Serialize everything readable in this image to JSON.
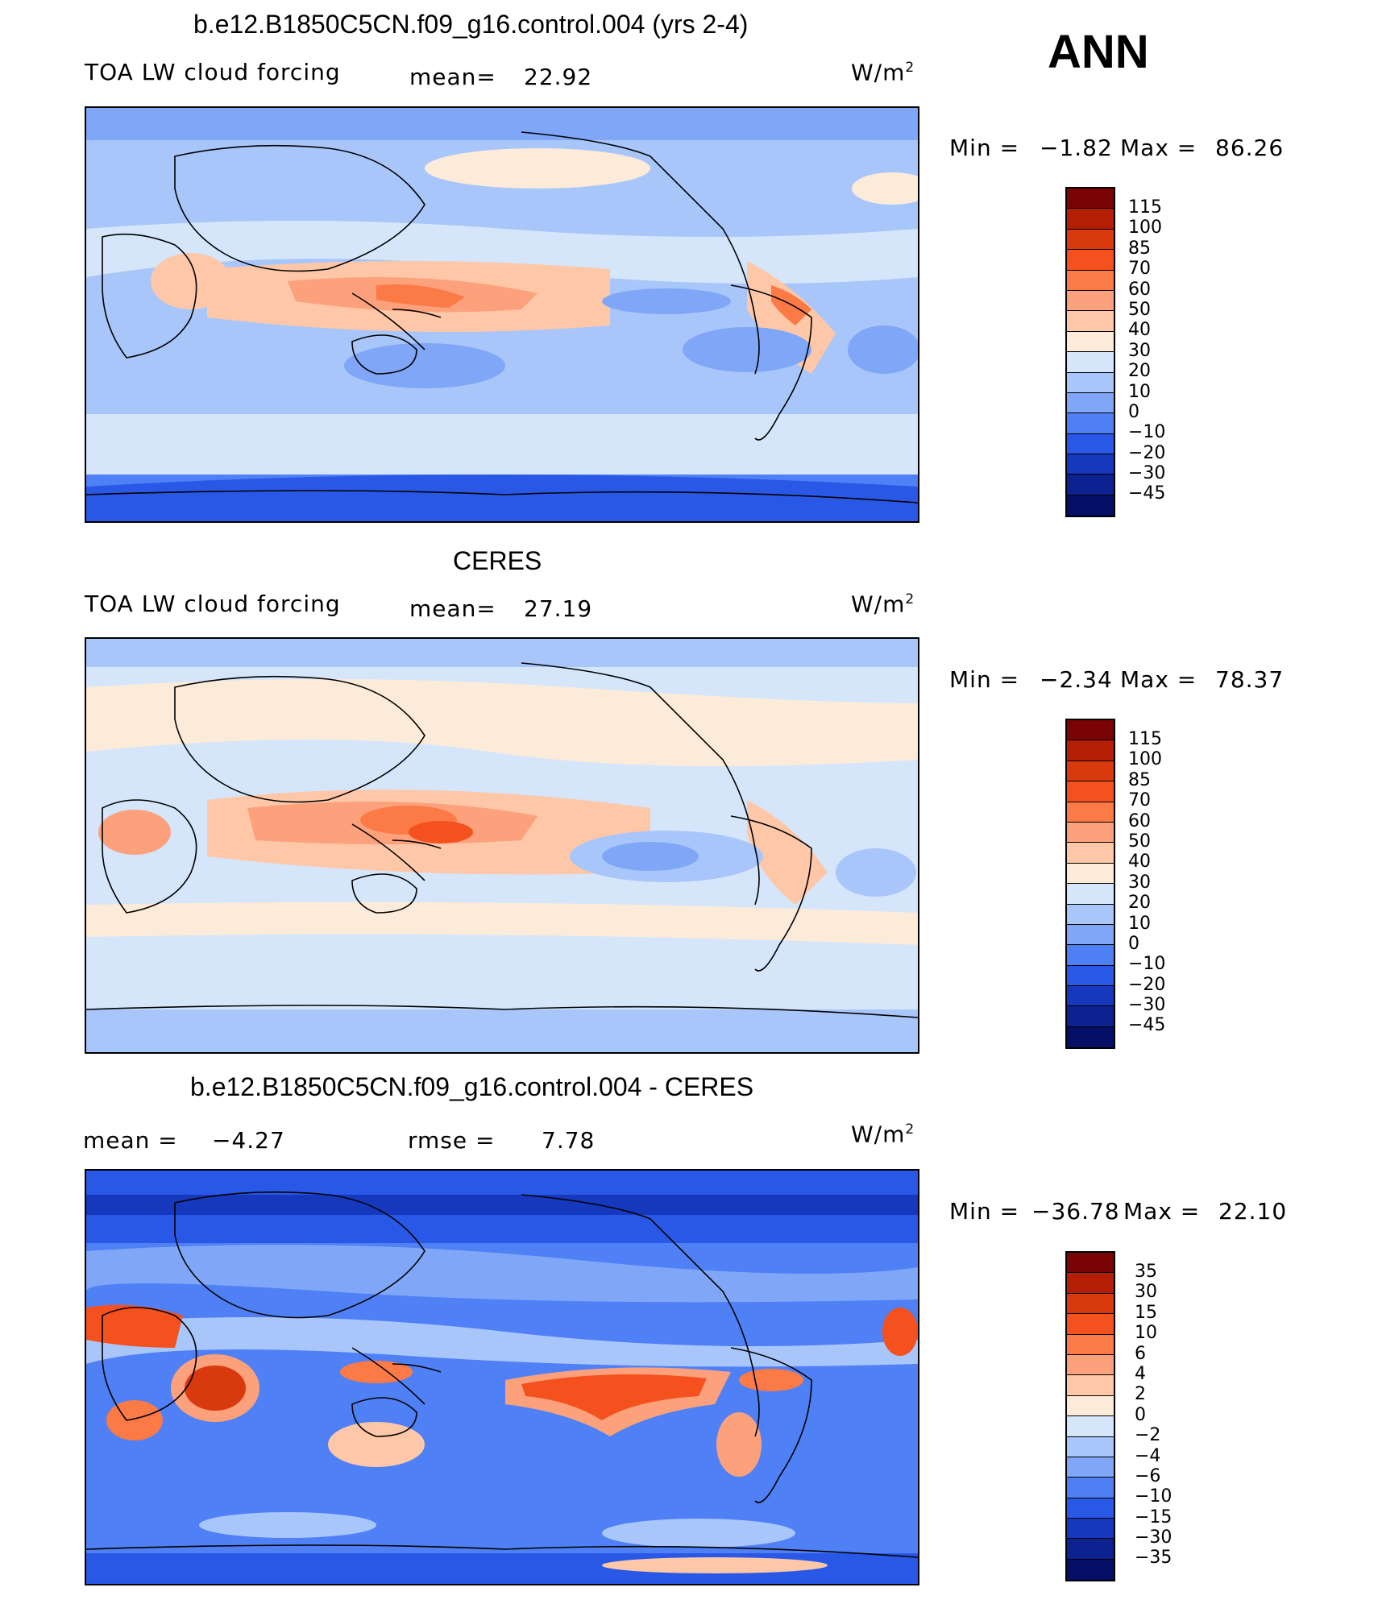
{
  "season": "ANN",
  "units_label": "W/m",
  "units_sup": "2",
  "panels": [
    {
      "title": "b.e12.B1850C5CN.f09_g16.control.004 (yrs 2-4)",
      "left_label": "TOA LW cloud forcing",
      "center_label": "mean=",
      "center_value": "22.92",
      "min_label": "Min =",
      "min_value": "−1.82",
      "max_label": "Max =",
      "max_value": "86.26",
      "colorbar_levels": [
        "115",
        "100",
        "85",
        "70",
        "60",
        "50",
        "40",
        "30",
        "20",
        "10",
        "0",
        "−10",
        "−20",
        "−30",
        "−45"
      ]
    },
    {
      "title": "CERES",
      "left_label": "TOA LW cloud forcing",
      "center_label": "mean=",
      "center_value": "27.19",
      "min_label": "Min =",
      "min_value": "−2.34",
      "max_label": "Max =",
      "max_value": "78.37",
      "colorbar_levels": [
        "115",
        "100",
        "85",
        "70",
        "60",
        "50",
        "40",
        "30",
        "20",
        "10",
        "0",
        "−10",
        "−20",
        "−30",
        "−45"
      ]
    },
    {
      "title": "b.e12.B1850C5CN.f09_g16.control.004 - CERES",
      "left_label": "mean =",
      "left_value": "−4.27",
      "center_label": "rmse =",
      "center_value": "7.78",
      "min_label": "Min =",
      "min_value": "−36.78",
      "max_label": "Max =",
      "max_value": "22.10",
      "colorbar_levels": [
        "35",
        "30",
        "15",
        "10",
        "6",
        "4",
        "2",
        "0",
        "−2",
        "−4",
        "−6",
        "−10",
        "−15",
        "−30",
        "−35"
      ]
    }
  ],
  "colors": {
    "scale": [
      "#7a0403",
      "#b41e05",
      "#d93a0d",
      "#f4511e",
      "#fb7a45",
      "#fca17c",
      "#fdc7a8",
      "#fdebd9",
      "#d5e6fb",
      "#a9c6fa",
      "#7fa6f7",
      "#4f80f5",
      "#2a58e6",
      "#1538bd",
      "#0b2290",
      "#050f66"
    ],
    "land_outline": "#000000"
  },
  "chart_data": [
    {
      "type": "heatmap",
      "title": "b.e12.B1850C5CN.f09_g16.control.004 (yrs 2-4)",
      "variable": "TOA LW cloud forcing",
      "units": "W/m2",
      "mean": 22.92,
      "min": -1.82,
      "max": 86.26,
      "levels": [
        -45,
        -30,
        -20,
        -10,
        0,
        10,
        20,
        30,
        40,
        50,
        60,
        70,
        85,
        100,
        115
      ]
    },
    {
      "type": "heatmap",
      "title": "CERES",
      "variable": "TOA LW cloud forcing",
      "units": "W/m2",
      "mean": 27.19,
      "min": -2.34,
      "max": 78.37,
      "levels": [
        -45,
        -30,
        -20,
        -10,
        0,
        10,
        20,
        30,
        40,
        50,
        60,
        70,
        85,
        100,
        115
      ]
    },
    {
      "type": "heatmap",
      "title": "b.e12.B1850C5CN.f09_g16.control.004 - CERES",
      "units": "W/m2",
      "mean": -4.27,
      "rmse": 7.78,
      "min": -36.78,
      "max": 22.1,
      "levels": [
        -35,
        -30,
        -15,
        -10,
        -6,
        -4,
        -2,
        0,
        2,
        4,
        6,
        10,
        15,
        30,
        35
      ]
    }
  ]
}
